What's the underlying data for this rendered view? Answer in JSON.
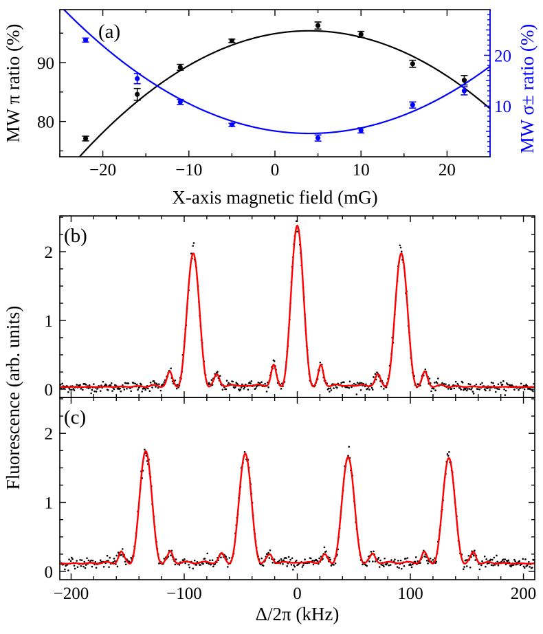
{
  "colors": {
    "axis": "#000000",
    "pi_series": "#000000",
    "sigma_series": "#0000ff",
    "fit": "#ff0000",
    "data": "#000000"
  },
  "chart_data": [
    {
      "id": "a",
      "type": "scatter",
      "panel_label": "(a)",
      "xlabel": "X-axis magnetic field (mG)",
      "ylabel_left": "MW π ratio (%)",
      "ylabel_right": "MW σ± ratio (%)",
      "xlim": [
        -25,
        25
      ],
      "ylim_left": [
        74,
        99
      ],
      "ylim_right": [
        0,
        29
      ],
      "x_ticks": [
        -20,
        -10,
        0,
        10,
        20
      ],
      "x_tick_labels": [
        "−20",
        "−10",
        "0",
        "10",
        "20"
      ],
      "y_left_ticks": [
        80,
        90
      ],
      "y_left_tick_labels": [
        "80",
        "90"
      ],
      "y_right_ticks": [
        10,
        20
      ],
      "y_right_tick_labels": [
        "10",
        "20"
      ],
      "series": [
        {
          "axis": "left",
          "color": "#000000",
          "x": [
            -22,
            -16,
            -11,
            -5,
            5,
            10,
            16,
            22
          ],
          "y": [
            77.1,
            84.6,
            89.2,
            93.7,
            96.3,
            94.8,
            89.8,
            87.0
          ],
          "yerr": [
            0.4,
            1.0,
            0.5,
            0.3,
            0.6,
            0.5,
            0.6,
            0.8
          ],
          "fit": {
            "kind": "parabola",
            "vertex_x": 4,
            "vertex_y": 95.4,
            "curvature": 0.03
          }
        },
        {
          "axis": "right",
          "color": "#0000ff",
          "x": [
            -22,
            -16,
            -11,
            -5,
            5,
            10,
            16,
            22
          ],
          "y": [
            23.0,
            15.4,
            10.8,
            6.3,
            3.7,
            5.2,
            10.2,
            13.0
          ],
          "yerr": [
            0.4,
            1.0,
            0.5,
            0.3,
            0.6,
            0.5,
            0.6,
            0.8
          ],
          "fit": {
            "kind": "parabola",
            "vertex_x": 4,
            "vertex_y": 4.6,
            "curvature": 0.03
          }
        }
      ]
    },
    {
      "id": "b",
      "type": "line",
      "panel_label": "(b)",
      "xlim": [
        -210,
        210
      ],
      "ylim": [
        -0.12,
        2.52
      ],
      "y_ticks": [
        0,
        1,
        2
      ],
      "y_tick_labels": [
        "0",
        "1",
        "2"
      ],
      "peaks": [
        {
          "x": -92,
          "height": 1.97
        },
        {
          "x": 0,
          "height": 2.37
        },
        {
          "x": 92,
          "height": 1.97
        }
      ],
      "baseline": 0.03,
      "peak_width_khz": 4.5,
      "sidelobes": [
        {
          "x": -113,
          "height": 0.17
        },
        {
          "x": -71,
          "height": 0.13
        },
        {
          "x": -21,
          "height": 0.25
        },
        {
          "x": 21,
          "height": 0.25
        },
        {
          "x": 71,
          "height": 0.13
        },
        {
          "x": 113,
          "height": 0.17
        }
      ]
    },
    {
      "id": "c",
      "type": "line",
      "panel_label": "(c)",
      "xlabel": "Δ/2π (kHz)",
      "ylabel": "Fluorescence (arb. units)",
      "xlim": [
        -210,
        210
      ],
      "ylim": [
        -0.12,
        2.52
      ],
      "x_ticks": [
        -200,
        -100,
        0,
        100,
        200
      ],
      "x_tick_labels": [
        "−200",
        "−100",
        "0",
        "100",
        "200"
      ],
      "y_ticks": [
        0,
        1,
        2
      ],
      "y_tick_labels": [
        "0",
        "1",
        "2"
      ],
      "peaks": [
        {
          "x": -134,
          "height": 1.74
        },
        {
          "x": -46,
          "height": 1.7
        },
        {
          "x": 45,
          "height": 1.65
        },
        {
          "x": 134,
          "height": 1.64
        }
      ],
      "baseline": 0.11,
      "peak_width_khz": 4.5,
      "sidelobes": [
        {
          "x": -156,
          "height": 0.22
        },
        {
          "x": -112,
          "height": 0.22
        },
        {
          "x": -67,
          "height": 0.19
        },
        {
          "x": -24,
          "height": 0.18
        },
        {
          "x": 24,
          "height": 0.18
        },
        {
          "x": 67,
          "height": 0.19
        },
        {
          "x": 112,
          "height": 0.22
        },
        {
          "x": 156,
          "height": 0.22
        }
      ]
    }
  ]
}
